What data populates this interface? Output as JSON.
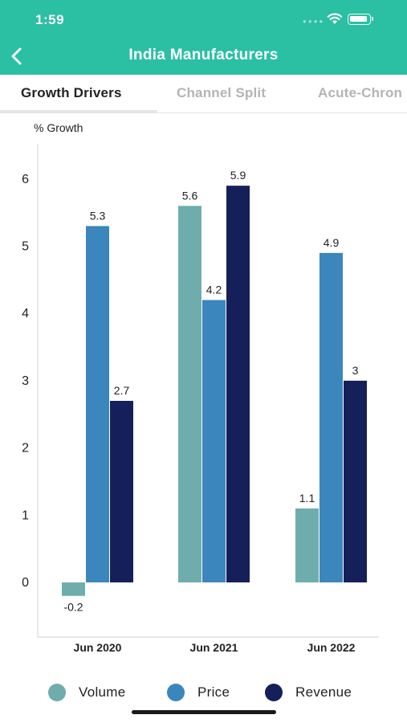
{
  "status_bar": {
    "time": "1:59"
  },
  "nav": {
    "title": "India Manufacturers",
    "back_icon": "chevron-left-icon"
  },
  "tabs": [
    {
      "label": "Growth Drivers",
      "active": true
    },
    {
      "label": "Channel Split",
      "active": false
    },
    {
      "label": "Acute-Chron",
      "active": false
    }
  ],
  "colors": {
    "header": "#2bbfa4",
    "volume": "#6fadad",
    "price": "#3b86bc",
    "revenue": "#15205a"
  },
  "chart_data": {
    "type": "bar",
    "title": "",
    "ylabel": "% Growth",
    "xlabel": "",
    "categories": [
      "Jun 2020",
      "Jun 2021",
      "Jun 2022"
    ],
    "series": [
      {
        "name": "Volume",
        "color": "#6fadad",
        "values": [
          -0.2,
          5.6,
          1.1
        ],
        "labels": [
          "-0.2",
          "5.6",
          "1.1"
        ]
      },
      {
        "name": "Price",
        "color": "#3b86bc",
        "values": [
          5.3,
          4.2,
          4.9
        ],
        "labels": [
          "5.3",
          "4.2",
          "4.9"
        ]
      },
      {
        "name": "Revenue",
        "color": "#15205a",
        "values": [
          2.7,
          5.9,
          3.0
        ],
        "labels": [
          "2.7",
          "5.9",
          "3"
        ]
      }
    ],
    "yticks": [
      0,
      1,
      2,
      3,
      4,
      5,
      6
    ],
    "ylim": [
      -0.8,
      6.5
    ],
    "grid": false,
    "legend": "bottom"
  }
}
